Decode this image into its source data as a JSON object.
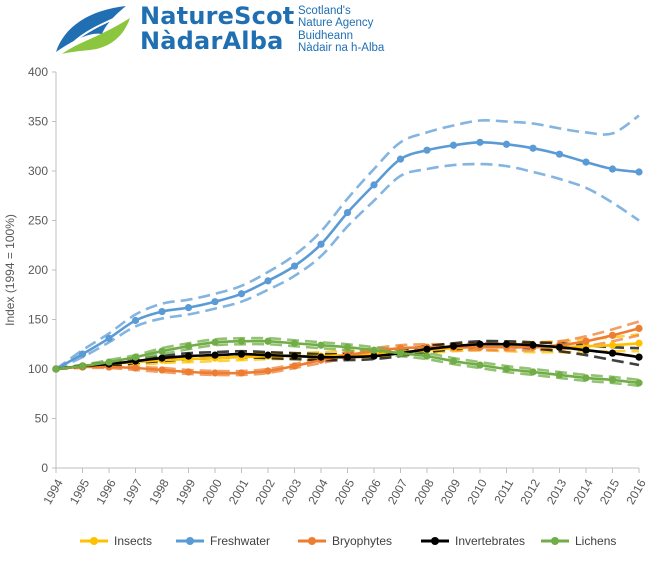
{
  "logo": {
    "name_en": "NatureScot",
    "name_gd": "NàdarAlba",
    "tagline_en_1": "Scotland's",
    "tagline_en_2": "Nature Agency",
    "tagline_gd_1": "Buidheann",
    "tagline_gd_2": "Nàdair na h-Alba",
    "colors": {
      "blue": "#1f6fb2",
      "green": "#8cc63f"
    }
  },
  "chart_data": {
    "type": "line",
    "title": "",
    "xlabel": "",
    "ylabel": "Index (1994 = 100%)",
    "ylim": [
      0,
      400
    ],
    "yticks": [
      0,
      50,
      100,
      150,
      200,
      250,
      300,
      350,
      400
    ],
    "grid": false,
    "legend_position": "bottom",
    "x": [
      "1994",
      "1995",
      "1996",
      "1997",
      "1998",
      "1999",
      "2000",
      "2001",
      "2002",
      "2003",
      "2004",
      "2005",
      "2006",
      "2007",
      "2008",
      "2009",
      "2010",
      "2011",
      "2012",
      "2013",
      "2014",
      "2015",
      "2016"
    ],
    "series": [
      {
        "name": "Insects",
        "color": "#ffc000",
        "values": [
          100,
          103,
          105,
          107,
          109,
          110,
          111,
          112,
          113,
          113,
          113,
          114,
          115,
          117,
          119,
          121,
          122,
          122,
          122,
          122,
          123,
          124,
          126
        ],
        "ci_lower": [
          100,
          102,
          103,
          104,
          106,
          107,
          108,
          109,
          110,
          110,
          110,
          111,
          112,
          114,
          116,
          118,
          119,
          118,
          117,
          117,
          117,
          118,
          118
        ],
        "ci_upper": [
          100,
          104,
          107,
          109,
          111,
          113,
          114,
          115,
          116,
          116,
          117,
          118,
          119,
          121,
          123,
          125,
          126,
          126,
          127,
          128,
          130,
          132,
          135
        ]
      },
      {
        "name": "Freshwater",
        "color": "#5b9bd5",
        "values": [
          100,
          115,
          131,
          149,
          158,
          162,
          168,
          176,
          189,
          204,
          226,
          258,
          286,
          312,
          321,
          326,
          329,
          327,
          323,
          317,
          309,
          302,
          299
        ],
        "ci_lower": [
          100,
          112,
          127,
          143,
          151,
          155,
          161,
          168,
          180,
          194,
          214,
          244,
          270,
          295,
          302,
          306,
          307,
          305,
          299,
          292,
          283,
          268,
          250
        ],
        "ci_upper": [
          100,
          119,
          136,
          155,
          166,
          170,
          176,
          184,
          198,
          215,
          239,
          272,
          302,
          329,
          339,
          346,
          351,
          350,
          348,
          343,
          339,
          338,
          356
        ]
      },
      {
        "name": "Bryophytes",
        "color": "#ed7d31",
        "values": [
          100,
          102,
          102,
          101,
          99,
          97,
          96,
          96,
          98,
          103,
          109,
          114,
          118,
          121,
          122,
          122,
          122,
          122,
          122,
          124,
          128,
          134,
          141
        ],
        "ci_lower": [
          100,
          101,
          101,
          99,
          97,
          95,
          94,
          94,
          96,
          101,
          106,
          111,
          115,
          118,
          119,
          119,
          119,
          119,
          119,
          120,
          123,
          128,
          134
        ],
        "ci_upper": [
          100,
          103,
          103,
          102,
          101,
          99,
          98,
          98,
          100,
          105,
          112,
          117,
          121,
          124,
          125,
          125,
          126,
          126,
          126,
          128,
          133,
          140,
          148
        ]
      },
      {
        "name": "Invertebrates",
        "color": "#000000",
        "values": [
          100,
          103,
          105,
          108,
          111,
          113,
          114,
          115,
          114,
          113,
          112,
          112,
          113,
          116,
          120,
          123,
          125,
          125,
          124,
          122,
          119,
          116,
          112
        ],
        "ci_lower": [
          100,
          102,
          103,
          106,
          108,
          110,
          111,
          112,
          111,
          110,
          109,
          109,
          110,
          113,
          117,
          120,
          122,
          122,
          121,
          118,
          114,
          109,
          104
        ],
        "ci_upper": [
          100,
          104,
          107,
          110,
          113,
          116,
          117,
          118,
          117,
          116,
          115,
          115,
          116,
          119,
          123,
          126,
          128,
          128,
          127,
          126,
          124,
          122,
          121
        ]
      },
      {
        "name": "Lichens",
        "color": "#70ad47",
        "values": [
          100,
          103,
          107,
          112,
          118,
          123,
          127,
          128,
          128,
          126,
          124,
          122,
          119,
          116,
          113,
          108,
          104,
          100,
          97,
          94,
          91,
          89,
          86
        ],
        "ci_lower": [
          100,
          102,
          105,
          110,
          115,
          120,
          124,
          125,
          125,
          123,
          121,
          119,
          116,
          113,
          110,
          105,
          101,
          97,
          94,
          91,
          88,
          86,
          83
        ],
        "ci_upper": [
          100,
          104,
          109,
          114,
          121,
          126,
          130,
          131,
          131,
          129,
          127,
          125,
          122,
          119,
          116,
          111,
          107,
          103,
          100,
          97,
          94,
          92,
          89
        ]
      }
    ]
  }
}
